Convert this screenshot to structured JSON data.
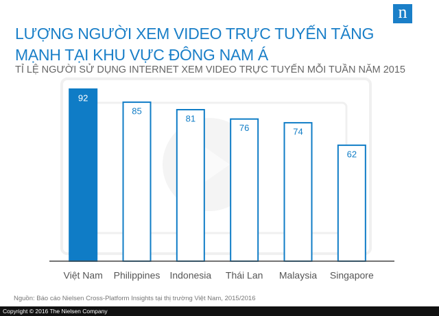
{
  "logo": "n",
  "chart_data": {
    "type": "bar",
    "title": "LƯỢNG NGƯỜI XEM VIDEO TRỰC TUYẾN TĂNG MẠNH TẠI KHU VỰC ĐÔNG NAM Á",
    "subtitle": "TỈ LỆ NGƯỜI SỬ DỤNG INTERNET XEM VIDEO TRỰC TUYẾN MỖI TUẦN NĂM 2015",
    "categories": [
      "Việt Nam",
      "Philippines",
      "Indonesia",
      "Thái Lan",
      "Malaysia",
      "Singapore"
    ],
    "values": [
      92,
      85,
      81,
      76,
      74,
      62
    ],
    "colors": [
      "#0f7cc6",
      "#ffffff",
      "#ffffff",
      "#ffffff",
      "#ffffff",
      "#ffffff"
    ],
    "edgecolor": "#0f7cc6",
    "source": "Nguồn: Báo cáo Nielsen Cross-Platform Insights tại thị trường Việt Nam, 2015/2016",
    "copyright": "Copyright © 2016 The Nielsen Company"
  }
}
